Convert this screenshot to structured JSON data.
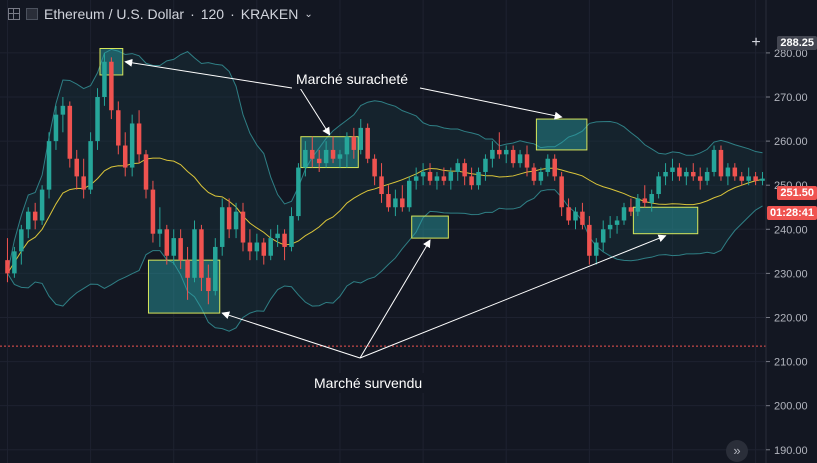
{
  "toolbar": {
    "symbol": "Ethereum / U.S. Dollar",
    "interval": "120",
    "exchange": "KRAKEN"
  },
  "price_axis": {
    "current_price": "251.50",
    "countdown": "01:28:41",
    "crosshair_price": "288.25"
  },
  "annotations": {
    "overbought": "Marché suracheté",
    "oversold": "Marché survendu"
  },
  "colors": {
    "background": "#131722",
    "up": "#26a69a",
    "down": "#ef5350",
    "bollinger": "#2f7f85",
    "middle_band": "#d9c43a",
    "highlight_box": "#d7e65a",
    "reference_line": "#ef5350"
  },
  "chart_data": {
    "type": "candlestick",
    "ylim": [
      187,
      292
    ],
    "yticks": [
      190,
      200,
      210,
      220,
      230,
      240,
      250,
      260,
      270,
      280
    ],
    "reference_line": 213.5,
    "candles": [
      {
        "o": 233,
        "h": 238,
        "l": 228,
        "c": 230
      },
      {
        "o": 230,
        "h": 236,
        "l": 229,
        "c": 235
      },
      {
        "o": 235,
        "h": 241,
        "l": 232,
        "c": 240
      },
      {
        "o": 240,
        "h": 245,
        "l": 238,
        "c": 244
      },
      {
        "o": 244,
        "h": 246,
        "l": 240,
        "c": 242
      },
      {
        "o": 242,
        "h": 250,
        "l": 241,
        "c": 249
      },
      {
        "o": 249,
        "h": 262,
        "l": 247,
        "c": 260
      },
      {
        "o": 260,
        "h": 268,
        "l": 258,
        "c": 266
      },
      {
        "o": 266,
        "h": 270,
        "l": 262,
        "c": 268
      },
      {
        "o": 268,
        "h": 269,
        "l": 254,
        "c": 256
      },
      {
        "o": 256,
        "h": 258,
        "l": 249,
        "c": 252
      },
      {
        "o": 252,
        "h": 256,
        "l": 247,
        "c": 249
      },
      {
        "o": 249,
        "h": 262,
        "l": 248,
        "c": 260
      },
      {
        "o": 260,
        "h": 272,
        "l": 258,
        "c": 270
      },
      {
        "o": 270,
        "h": 280,
        "l": 268,
        "c": 278
      },
      {
        "o": 278,
        "h": 279,
        "l": 265,
        "c": 267
      },
      {
        "o": 267,
        "h": 269,
        "l": 257,
        "c": 259
      },
      {
        "o": 259,
        "h": 262,
        "l": 252,
        "c": 254
      },
      {
        "o": 254,
        "h": 266,
        "l": 252,
        "c": 264
      },
      {
        "o": 264,
        "h": 267,
        "l": 255,
        "c": 257
      },
      {
        "o": 257,
        "h": 258,
        "l": 247,
        "c": 249
      },
      {
        "o": 249,
        "h": 251,
        "l": 237,
        "c": 239
      },
      {
        "o": 239,
        "h": 245,
        "l": 236,
        "c": 240
      },
      {
        "o": 240,
        "h": 241,
        "l": 232,
        "c": 234
      },
      {
        "o": 234,
        "h": 240,
        "l": 232,
        "c": 238
      },
      {
        "o": 238,
        "h": 240,
        "l": 231,
        "c": 233
      },
      {
        "o": 233,
        "h": 236,
        "l": 224,
        "c": 229
      },
      {
        "o": 229,
        "h": 242,
        "l": 228,
        "c": 240
      },
      {
        "o": 240,
        "h": 241,
        "l": 226,
        "c": 229
      },
      {
        "o": 229,
        "h": 232,
        "l": 223,
        "c": 226
      },
      {
        "o": 226,
        "h": 238,
        "l": 225,
        "c": 236
      },
      {
        "o": 236,
        "h": 247,
        "l": 234,
        "c": 245
      },
      {
        "o": 245,
        "h": 247,
        "l": 238,
        "c": 240
      },
      {
        "o": 240,
        "h": 246,
        "l": 238,
        "c": 244
      },
      {
        "o": 244,
        "h": 246,
        "l": 235,
        "c": 237
      },
      {
        "o": 237,
        "h": 240,
        "l": 233,
        "c": 235
      },
      {
        "o": 235,
        "h": 239,
        "l": 233,
        "c": 237
      },
      {
        "o": 237,
        "h": 238,
        "l": 232,
        "c": 234
      },
      {
        "o": 234,
        "h": 240,
        "l": 233,
        "c": 238
      },
      {
        "o": 238,
        "h": 241,
        "l": 236,
        "c": 239
      },
      {
        "o": 239,
        "h": 240,
        "l": 233,
        "c": 236
      },
      {
        "o": 236,
        "h": 245,
        "l": 235,
        "c": 243
      },
      {
        "o": 243,
        "h": 255,
        "l": 242,
        "c": 254
      },
      {
        "o": 254,
        "h": 260,
        "l": 252,
        "c": 258
      },
      {
        "o": 258,
        "h": 261,
        "l": 254,
        "c": 256
      },
      {
        "o": 256,
        "h": 258,
        "l": 253,
        "c": 255
      },
      {
        "o": 255,
        "h": 260,
        "l": 254,
        "c": 258
      },
      {
        "o": 258,
        "h": 261,
        "l": 255,
        "c": 256
      },
      {
        "o": 256,
        "h": 258,
        "l": 254,
        "c": 257
      },
      {
        "o": 257,
        "h": 262,
        "l": 254,
        "c": 261
      },
      {
        "o": 261,
        "h": 263,
        "l": 256,
        "c": 258
      },
      {
        "o": 258,
        "h": 265,
        "l": 257,
        "c": 263
      },
      {
        "o": 263,
        "h": 264,
        "l": 255,
        "c": 256
      },
      {
        "o": 256,
        "h": 257,
        "l": 250,
        "c": 252
      },
      {
        "o": 252,
        "h": 255,
        "l": 246,
        "c": 248
      },
      {
        "o": 248,
        "h": 250,
        "l": 244,
        "c": 245
      },
      {
        "o": 245,
        "h": 249,
        "l": 243,
        "c": 247
      },
      {
        "o": 247,
        "h": 250,
        "l": 244,
        "c": 245
      },
      {
        "o": 245,
        "h": 252,
        "l": 244,
        "c": 251
      },
      {
        "o": 251,
        "h": 254,
        "l": 249,
        "c": 252
      },
      {
        "o": 252,
        "h": 255,
        "l": 250,
        "c": 253
      },
      {
        "o": 253,
        "h": 255,
        "l": 250,
        "c": 251
      },
      {
        "o": 251,
        "h": 253,
        "l": 249,
        "c": 252
      },
      {
        "o": 252,
        "h": 254,
        "l": 250,
        "c": 251
      },
      {
        "o": 251,
        "h": 254,
        "l": 249,
        "c": 253
      },
      {
        "o": 253,
        "h": 256,
        "l": 251,
        "c": 255
      },
      {
        "o": 255,
        "h": 256,
        "l": 250,
        "c": 252
      },
      {
        "o": 252,
        "h": 254,
        "l": 249,
        "c": 250
      },
      {
        "o": 250,
        "h": 254,
        "l": 249,
        "c": 253
      },
      {
        "o": 253,
        "h": 257,
        "l": 251,
        "c": 256
      },
      {
        "o": 256,
        "h": 260,
        "l": 254,
        "c": 258
      },
      {
        "o": 258,
        "h": 262,
        "l": 256,
        "c": 257
      },
      {
        "o": 257,
        "h": 259,
        "l": 255,
        "c": 258
      },
      {
        "o": 258,
        "h": 259,
        "l": 254,
        "c": 255
      },
      {
        "o": 255,
        "h": 258,
        "l": 254,
        "c": 257
      },
      {
        "o": 257,
        "h": 259,
        "l": 252,
        "c": 254
      },
      {
        "o": 254,
        "h": 255,
        "l": 250,
        "c": 251
      },
      {
        "o": 251,
        "h": 254,
        "l": 250,
        "c": 253
      },
      {
        "o": 253,
        "h": 257,
        "l": 252,
        "c": 256
      },
      {
        "o": 256,
        "h": 257,
        "l": 251,
        "c": 252
      },
      {
        "o": 252,
        "h": 253,
        "l": 243,
        "c": 245
      },
      {
        "o": 245,
        "h": 247,
        "l": 241,
        "c": 242
      },
      {
        "o": 242,
        "h": 245,
        "l": 240,
        "c": 244
      },
      {
        "o": 244,
        "h": 246,
        "l": 240,
        "c": 241
      },
      {
        "o": 241,
        "h": 243,
        "l": 232,
        "c": 234
      },
      {
        "o": 234,
        "h": 238,
        "l": 232,
        "c": 237
      },
      {
        "o": 237,
        "h": 242,
        "l": 235,
        "c": 240
      },
      {
        "o": 240,
        "h": 243,
        "l": 238,
        "c": 241
      },
      {
        "o": 241,
        "h": 243,
        "l": 239,
        "c": 242
      },
      {
        "o": 242,
        "h": 246,
        "l": 241,
        "c": 245
      },
      {
        "o": 245,
        "h": 247,
        "l": 243,
        "c": 244
      },
      {
        "o": 244,
        "h": 248,
        "l": 243,
        "c": 247
      },
      {
        "o": 247,
        "h": 250,
        "l": 245,
        "c": 246
      },
      {
        "o": 246,
        "h": 249,
        "l": 244,
        "c": 248
      },
      {
        "o": 248,
        "h": 253,
        "l": 247,
        "c": 252
      },
      {
        "o": 252,
        "h": 255,
        "l": 250,
        "c": 253
      },
      {
        "o": 253,
        "h": 256,
        "l": 251,
        "c": 254
      },
      {
        "o": 254,
        "h": 255,
        "l": 251,
        "c": 252
      },
      {
        "o": 252,
        "h": 254,
        "l": 250,
        "c": 253
      },
      {
        "o": 253,
        "h": 255,
        "l": 251,
        "c": 252
      },
      {
        "o": 252,
        "h": 254,
        "l": 249,
        "c": 251
      },
      {
        "o": 251,
        "h": 254,
        "l": 250,
        "c": 253
      },
      {
        "o": 253,
        "h": 259,
        "l": 252,
        "c": 258
      },
      {
        "o": 258,
        "h": 259,
        "l": 251,
        "c": 252
      },
      {
        "o": 252,
        "h": 255,
        "l": 250,
        "c": 254
      },
      {
        "o": 254,
        "h": 255,
        "l": 251,
        "c": 252
      },
      {
        "o": 252,
        "h": 253,
        "l": 250,
        "c": 251
      },
      {
        "o": 251,
        "h": 254,
        "l": 250,
        "c": 252
      },
      {
        "o": 252,
        "h": 253,
        "l": 250,
        "c": 251
      },
      {
        "o": 251,
        "h": 253,
        "l": 250,
        "c": 251.5
      }
    ],
    "highlight_regions": [
      {
        "label": "overbought",
        "from": 14,
        "to": 16,
        "low": 275,
        "high": 281
      },
      {
        "label": "oversold",
        "from": 21,
        "to": 30,
        "low": 221,
        "high": 233
      },
      {
        "label": "overbought",
        "from": 43,
        "to": 50,
        "low": 254,
        "high": 261
      },
      {
        "label": "oversold",
        "from": 59,
        "to": 63,
        "low": 238,
        "high": 243
      },
      {
        "label": "overbought",
        "from": 77,
        "to": 83,
        "low": 258,
        "high": 265
      },
      {
        "label": "oversold",
        "from": 91,
        "to": 99,
        "low": 239,
        "high": 245
      }
    ]
  }
}
